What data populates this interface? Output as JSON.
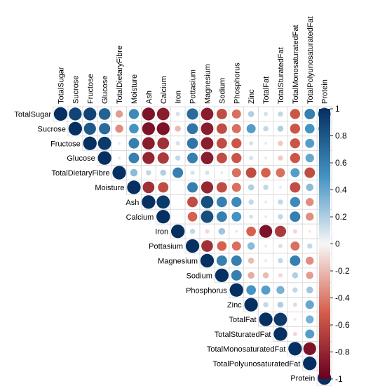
{
  "chart_data": {
    "type": "heatmap",
    "style": "correlogram-upper-triangle-circles",
    "variables": [
      "TotalSugar",
      "Sucrose",
      "Fructose",
      "Glucose",
      "TotalDietaryFibre",
      "Moisture",
      "Ash",
      "Calcium",
      "Iron",
      "Pottasium",
      "Magnesium",
      "Sodium",
      "Phosphorus",
      "Zinc",
      "TotalFat",
      "TotalSturatedFat",
      "TotalMonosaturatedFat",
      "TotalPolyunosaturatedFat",
      "Protein"
    ],
    "matrix_upper": [
      [
        1.0,
        0.9,
        0.9,
        0.75,
        -0.3,
        0.55,
        -0.9,
        -0.85,
        0.1,
        0.7,
        -0.85,
        -0.6,
        -0.45,
        0.2,
        0.1,
        0.15,
        -0.55,
        0.6,
        0.85
      ],
      [
        1.0,
        0.8,
        0.7,
        -0.35,
        0.5,
        -0.9,
        -0.9,
        -0.2,
        0.65,
        -0.85,
        -0.6,
        -0.45,
        0.45,
        0.15,
        0.2,
        -0.55,
        0.5,
        0.75
      ],
      [
        1.0,
        0.95,
        0.05,
        0.6,
        -0.85,
        -0.75,
        0.1,
        0.65,
        -0.85,
        -0.6,
        -0.55,
        0.1,
        0.05,
        -0.15,
        -0.55,
        0.45,
        0.35
      ],
      [
        1.0,
        -0.05,
        0.6,
        -0.8,
        -0.7,
        0.15,
        0.6,
        -0.85,
        -0.6,
        -0.55,
        0.1,
        0.05,
        -0.15,
        -0.55,
        0.4,
        0.3
      ],
      [
        1.0,
        0.3,
        0.15,
        0.2,
        0.6,
        0.1,
        0.1,
        0.05,
        -0.45,
        -0.6,
        -0.5,
        -0.45,
        0.45,
        -0.6,
        -0.6
      ],
      [
        1.0,
        -0.75,
        -0.6,
        0.0,
        0.6,
        -0.8,
        -0.6,
        -0.45,
        0.2,
        0.15,
        0.05,
        -0.6,
        0.3,
        0.15
      ],
      [
        1.0,
        0.95,
        0.0,
        -0.6,
        0.85,
        0.6,
        0.55,
        0.15,
        0.05,
        0.15,
        0.55,
        -0.35,
        -0.5
      ],
      [
        1.0,
        0.0,
        -0.5,
        0.85,
        0.6,
        0.5,
        0.1,
        0.05,
        0.15,
        0.6,
        -0.35,
        -0.5
      ],
      [
        1.0,
        0.15,
        -0.1,
        0.25,
        0.05,
        -0.5,
        -0.9,
        -0.7,
        -0.1,
        -0.05,
        -0.5
      ],
      [
        1.0,
        -0.75,
        -0.5,
        -0.45,
        0.3,
        0.05,
        0.1,
        -0.45,
        0.15,
        0.55
      ],
      [
        1.0,
        0.6,
        0.6,
        -0.2,
        0.05,
        0.15,
        0.6,
        -0.35,
        -0.55
      ],
      [
        1.0,
        0.6,
        -0.25,
        -0.2,
        -0.1,
        0.2,
        -0.3,
        -0.55
      ],
      [
        1.0,
        0.5,
        0.45,
        0.35,
        0.15,
        0.25,
        -0.2
      ],
      [
        1.0,
        0.15,
        0.2,
        -0.1,
        0.4,
        0.4
      ],
      [
        1.0,
        0.95,
        -0.05,
        0.35,
        0.55
      ],
      [
        1.0,
        -0.1,
        0.45,
        0.45
      ],
      [
        1.0,
        -0.9,
        0.35
      ],
      [
        1.0,
        0.45
      ],
      [
        1.0
      ]
    ],
    "colorbar": {
      "range": [
        -1,
        1
      ],
      "ticks": [
        "1",
        "0.8",
        "0.6",
        "0.4",
        "0.2",
        "0",
        "-0.2",
        "-0.4",
        "-0.6",
        "-0.8",
        "-1"
      ],
      "colors": {
        "neg_full": "#67001F",
        "neg_mid": "#D6604D",
        "zero": "#F7F7F7",
        "pos_mid": "#4393C3",
        "pos_full": "#053061"
      }
    }
  }
}
